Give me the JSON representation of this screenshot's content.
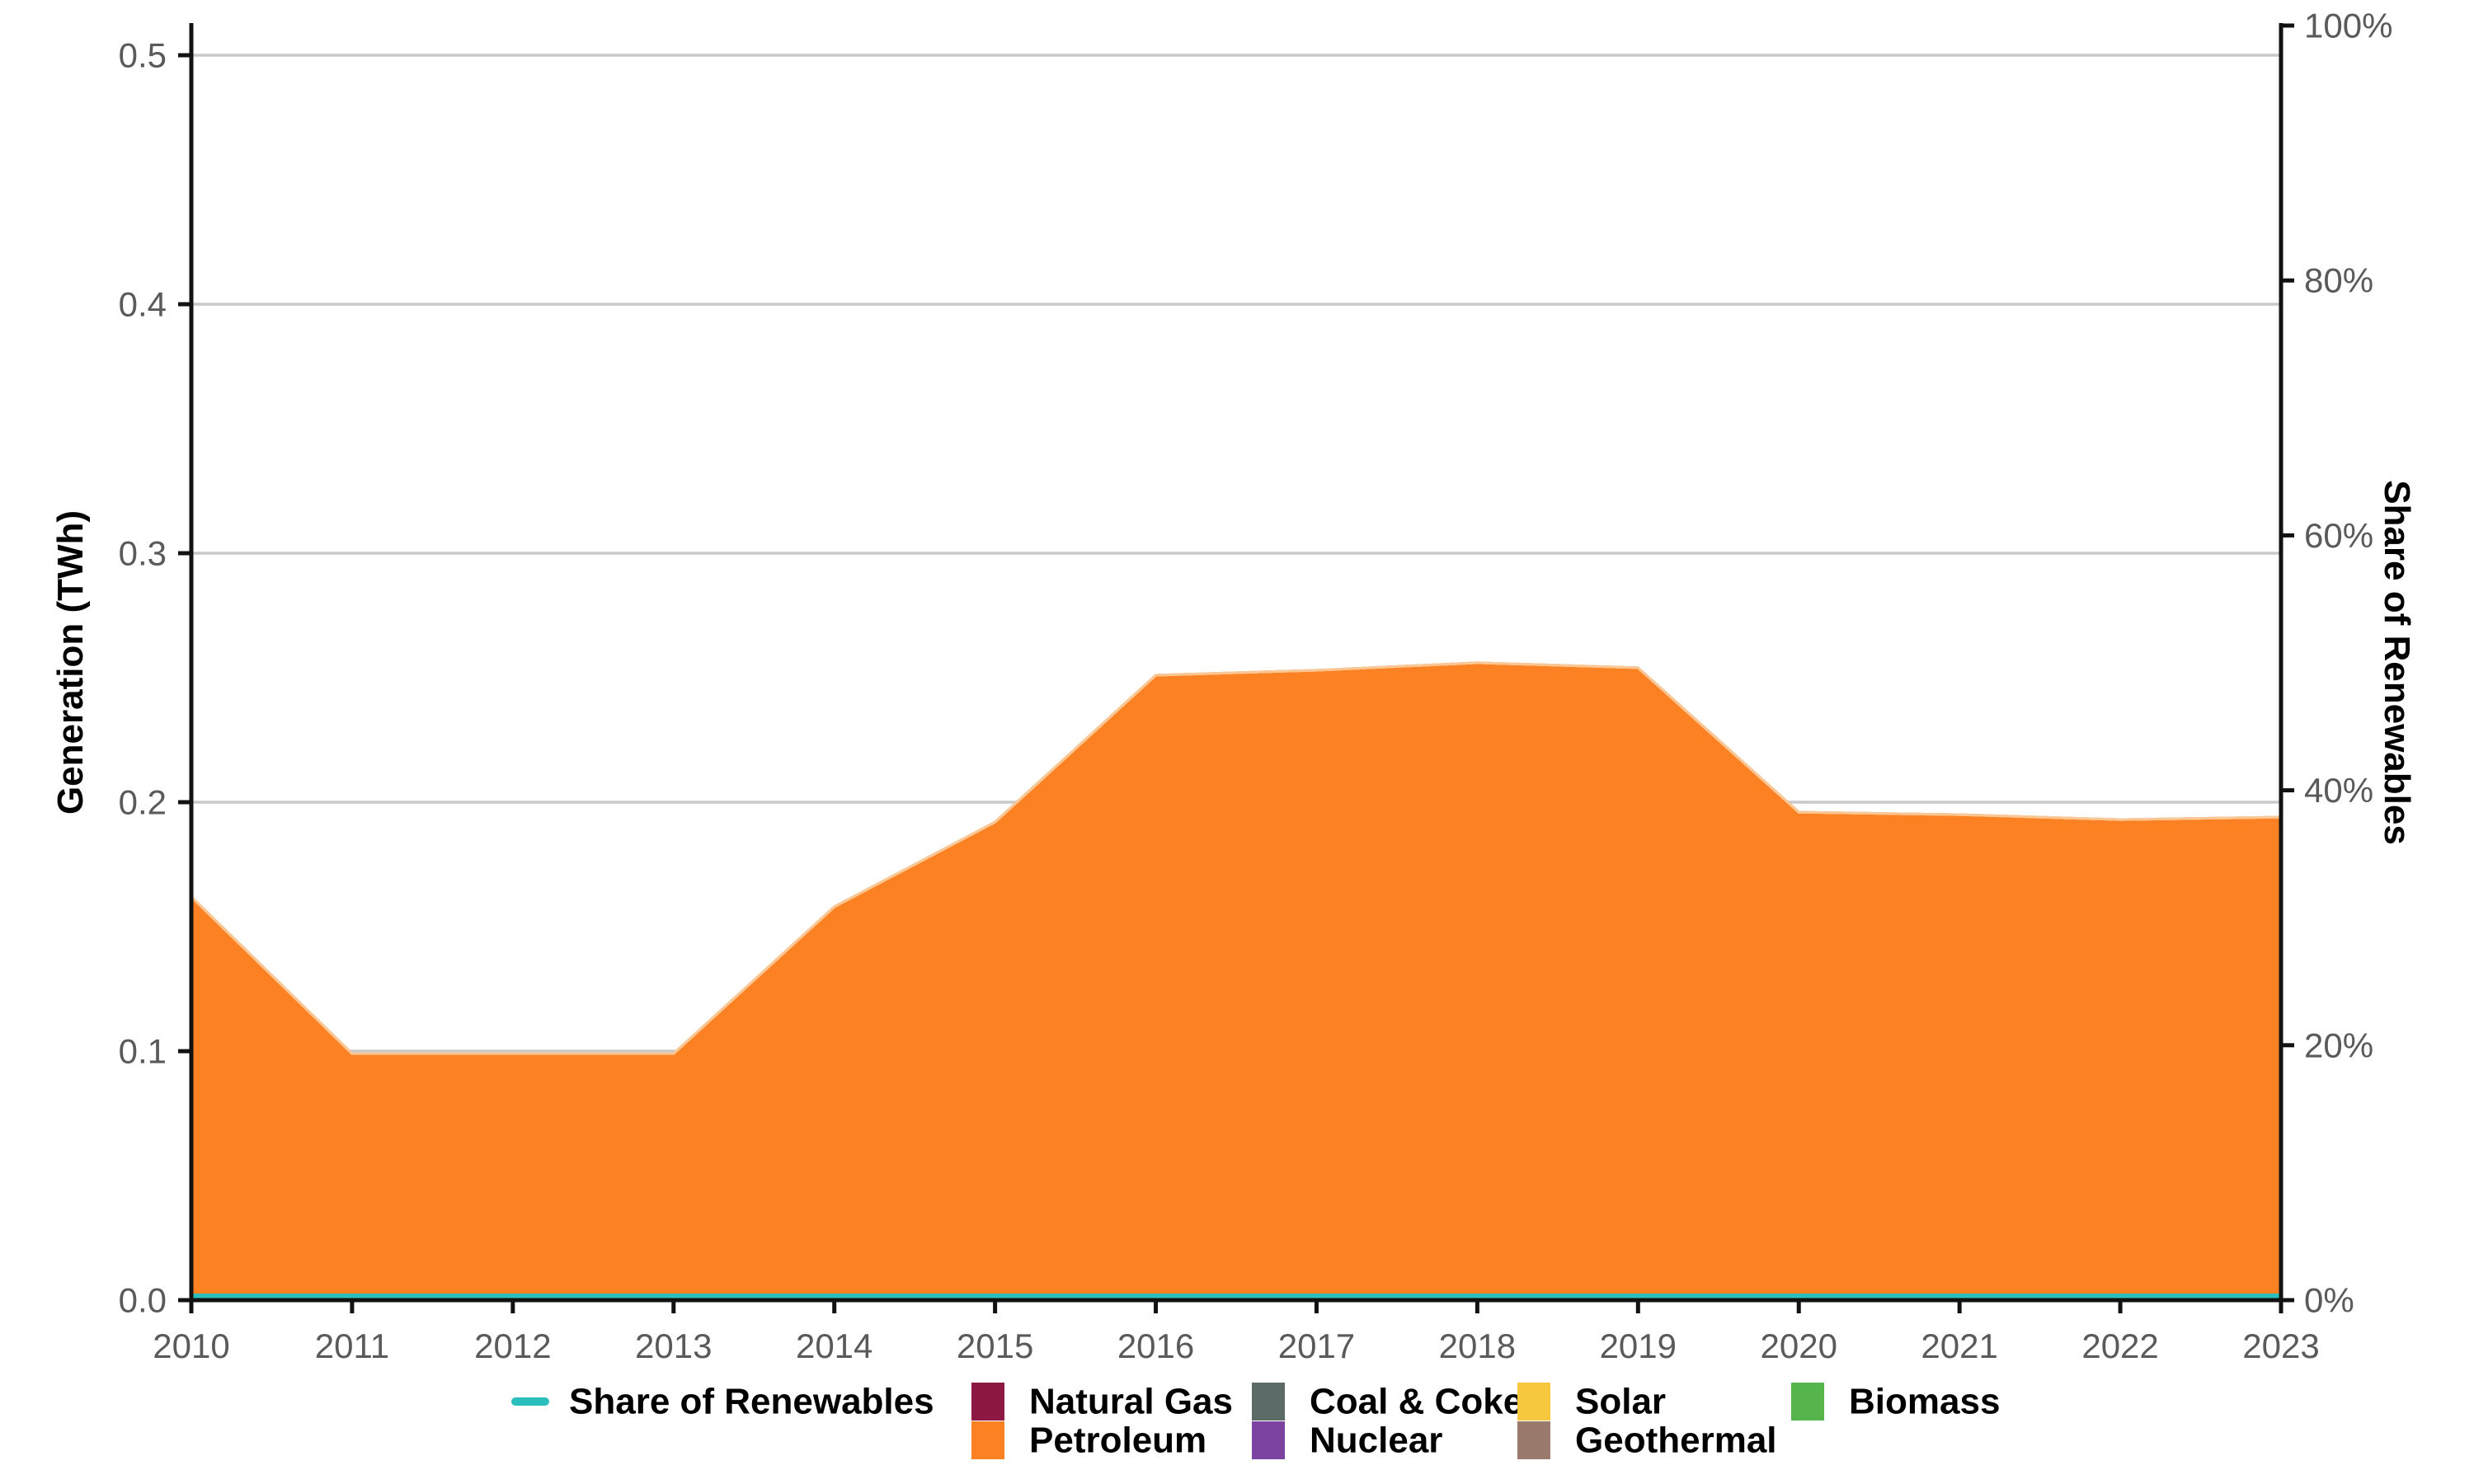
{
  "page": {
    "background": "#FFFFFF"
  },
  "colors": {
    "grid": "#C9C9C9",
    "axis_line": "#121212",
    "tick_label": "#5A5A5A",
    "title_text": "#000000",
    "legend_text": "#000000",
    "area_top_edge": "#F9C693"
  },
  "chart_data": {
    "type": "area",
    "stacked": true,
    "title": "",
    "grid": true,
    "legend_position": "bottom",
    "x": {
      "label": "",
      "values": [
        2010,
        2011,
        2012,
        2013,
        2014,
        2015,
        2016,
        2017,
        2018,
        2019,
        2020,
        2021,
        2022,
        2023
      ],
      "tick_labels": [
        "2010",
        "2011",
        "2012",
        "2013",
        "2014",
        "2015",
        "2016",
        "2017",
        "2018",
        "2019",
        "2020",
        "2021",
        "2022",
        "2023"
      ]
    },
    "left_axis": {
      "label": "Generation (TWh)",
      "tick_values": [
        0,
        0.1,
        0.2,
        0.3,
        0.4,
        0.5
      ],
      "tick_labels": [
        "0.0",
        "0.1",
        "0.2",
        "0.3",
        "0.4",
        "0.5"
      ],
      "range": [
        0,
        0.512
      ]
    },
    "right_axis": {
      "label": "Share of Renewables",
      "tick_values": [
        0,
        20,
        40,
        60,
        80,
        100
      ],
      "tick_labels": [
        "0%",
        "20%",
        "40%",
        "60%",
        "80%",
        "100%"
      ],
      "range": [
        0,
        100
      ]
    },
    "series": [
      {
        "name": "Petroleum",
        "color": "#FB8122",
        "values": [
          0.162,
          0.099,
          0.099,
          0.099,
          0.158,
          0.192,
          0.251,
          0.253,
          0.256,
          0.254,
          0.196,
          0.195,
          0.193,
          0.194
        ]
      },
      {
        "name": "Natural Gas",
        "color": "#8C1843",
        "values": [
          0,
          0,
          0,
          0,
          0,
          0,
          0,
          0,
          0,
          0,
          0,
          0,
          0,
          0
        ]
      },
      {
        "name": "Coal & Coke",
        "color": "#5C6B68",
        "values": [
          0,
          0,
          0,
          0,
          0,
          0,
          0,
          0,
          0,
          0,
          0,
          0,
          0,
          0
        ]
      },
      {
        "name": "Nuclear",
        "color": "#7D43A0",
        "values": [
          0,
          0,
          0,
          0,
          0,
          0,
          0,
          0,
          0,
          0,
          0,
          0,
          0,
          0
        ]
      },
      {
        "name": "Solar",
        "color": "#F7C83E",
        "values": [
          0,
          0,
          0,
          0,
          0,
          0,
          0,
          0,
          0,
          0,
          0,
          0,
          0,
          0
        ]
      },
      {
        "name": "Geothermal",
        "color": "#9B7A6E",
        "values": [
          0,
          0,
          0,
          0,
          0,
          0,
          0,
          0,
          0,
          0,
          0,
          0,
          0,
          0
        ]
      },
      {
        "name": "Biomass",
        "color": "#56B44D",
        "values": [
          0,
          0,
          0,
          0,
          0,
          0,
          0,
          0,
          0,
          0,
          0,
          0,
          0,
          0
        ]
      }
    ],
    "line_series": [
      {
        "name": "Share of Renewables",
        "axis": "right",
        "color": "#2ABFBC",
        "values": [
          0,
          0,
          0,
          0,
          0,
          0,
          0,
          0,
          0,
          0,
          0,
          0,
          0,
          0
        ]
      }
    ],
    "legend": {
      "rows": [
        [
          {
            "label": "Share of Renewables",
            "marker": "line",
            "color": "#2ABFBC",
            "col": 0
          },
          {
            "label": "Natural Gas",
            "marker": "square",
            "color": "#8C1843",
            "col": 1
          },
          {
            "label": "Coal & Coke",
            "marker": "square",
            "color": "#5C6B68",
            "col": 2
          },
          {
            "label": "Solar",
            "marker": "square",
            "color": "#F7C83E",
            "col": 3
          },
          {
            "label": "Biomass",
            "marker": "square",
            "color": "#56B44D",
            "col": 4
          }
        ],
        [
          {
            "label": "Petroleum",
            "marker": "square",
            "color": "#FB8122",
            "col": 1
          },
          {
            "label": "Nuclear",
            "marker": "square",
            "color": "#7D43A0",
            "col": 2
          },
          {
            "label": "Geothermal",
            "marker": "square",
            "color": "#9B7A6E",
            "col": 3
          }
        ]
      ]
    }
  }
}
